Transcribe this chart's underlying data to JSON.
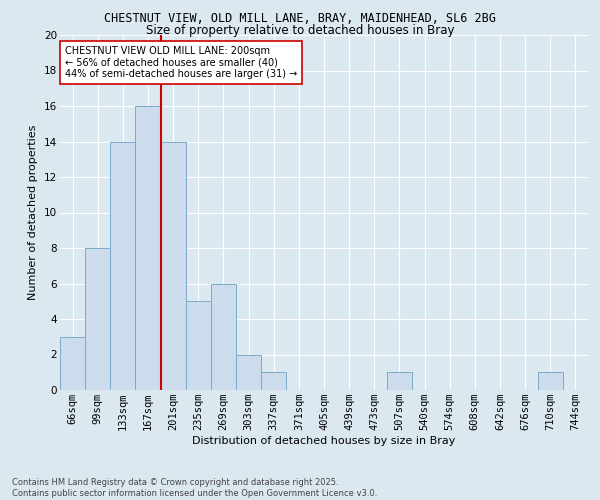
{
  "title1": "CHESTNUT VIEW, OLD MILL LANE, BRAY, MAIDENHEAD, SL6 2BG",
  "title2": "Size of property relative to detached houses in Bray",
  "xlabel": "Distribution of detached houses by size in Bray",
  "ylabel": "Number of detached properties",
  "bins": [
    "66sqm",
    "99sqm",
    "133sqm",
    "167sqm",
    "201sqm",
    "235sqm",
    "269sqm",
    "303sqm",
    "337sqm",
    "371sqm",
    "405sqm",
    "439sqm",
    "473sqm",
    "507sqm",
    "540sqm",
    "574sqm",
    "608sqm",
    "642sqm",
    "676sqm",
    "710sqm",
    "744sqm"
  ],
  "counts": [
    3,
    8,
    14,
    16,
    14,
    5,
    6,
    2,
    1,
    0,
    0,
    0,
    0,
    1,
    0,
    0,
    0,
    0,
    0,
    1,
    0
  ],
  "bar_color": "#ccdcec",
  "bar_edge_color": "#7aaaca",
  "ref_line_color": "#cc0000",
  "annotation_text": "CHESTNUT VIEW OLD MILL LANE: 200sqm\n← 56% of detached houses are smaller (40)\n44% of semi-detached houses are larger (31) →",
  "annotation_box_color": "#ffffff",
  "annotation_box_edge": "#cc0000",
  "footer1": "Contains HM Land Registry data © Crown copyright and database right 2025.",
  "footer2": "Contains public sector information licensed under the Open Government Licence v3.0.",
  "ylim": [
    0,
    20
  ],
  "yticks": [
    0,
    2,
    4,
    6,
    8,
    10,
    12,
    14,
    16,
    18,
    20
  ],
  "background_color": "#dce8f0",
  "grid_color": "#ffffff",
  "title1_fontsize": 8.5,
  "title2_fontsize": 8.5,
  "xlabel_fontsize": 8,
  "ylabel_fontsize": 8,
  "tick_fontsize": 7.5,
  "annot_fontsize": 7,
  "footer_fontsize": 6
}
